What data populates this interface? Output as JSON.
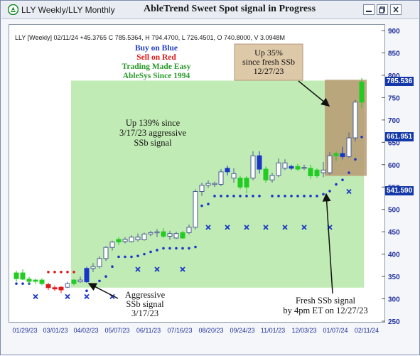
{
  "window": {
    "title": "LLY Weekly/LLY Monthly",
    "chart_heading": "AbleTrend Sweet Spot signal in Progress",
    "controls": [
      "minimize-icon",
      "restore-icon",
      "close-icon"
    ]
  },
  "quote_line": "LLY [Weekly] 02/11/24   +45.3765 C 785.5364, H 794.4700, L 726.4501, O 740.8000, V 3.0948M",
  "legend": [
    {
      "text": "Buy on Blue",
      "color": "#1f3cc8"
    },
    {
      "text": "Sell on Red",
      "color": "#e01818"
    },
    {
      "text": "Trading Made Easy",
      "color": "#2a9a2a"
    },
    {
      "text": "AbleSys Since 1994",
      "color": "#2a9a2a"
    }
  ],
  "annotations": {
    "up35": [
      "Up 35%",
      "since fresh SSb",
      "12/27/23"
    ],
    "up139": [
      "Up 139% since",
      "3/17/23 aggressive",
      "SSb signal"
    ],
    "aggressive": [
      "Aggressive",
      "SSb signal",
      "3/17/23"
    ],
    "fresh": [
      "Fresh SSb signal",
      "by 4pm ET on 12/27/23"
    ]
  },
  "price_tags": {
    "close": {
      "text": "785.536",
      "bg": "#1438a8"
    },
    "mid": {
      "text": "661.951",
      "bg": "#1438a8"
    },
    "stop": {
      "text": "541.590",
      "bg": "#1438a8"
    }
  },
  "colors": {
    "up": "#22cc22",
    "down": "#1a36c8",
    "sell": "#e01818",
    "neutral_outline": "#4a5e90",
    "stop": "#1a36c8",
    "highlight_green": "#b6e8a8",
    "highlight_brown": "#b89a72"
  },
  "chart_data": {
    "type": "candlestick",
    "title": "AbleTrend Sweet Spot signal in Progress",
    "symbol": "LLY",
    "interval": "Weekly",
    "ylim": [
      250,
      900
    ],
    "y_ticks": [
      250,
      300,
      350,
      400,
      450,
      500,
      550,
      600,
      650,
      700,
      750,
      800,
      850,
      900
    ],
    "x_ticks": [
      "01/29/23",
      "03/01/23",
      "04/02/23",
      "05/07/23",
      "06/11/23",
      "07/16/23",
      "08/20/23",
      "09/24/23",
      "11/01/23",
      "12/03/23",
      "01/07/24",
      "02/11/24"
    ],
    "grid": false,
    "bars": [
      {
        "date": "01/27/23",
        "o": 345,
        "h": 363,
        "l": 338,
        "c": 358,
        "s": "up"
      },
      {
        "date": "02/03/23",
        "o": 358,
        "h": 366,
        "l": 342,
        "c": 344,
        "s": "up"
      },
      {
        "date": "02/10/23",
        "o": 344,
        "h": 349,
        "l": 332,
        "c": 339,
        "s": "up"
      },
      {
        "date": "02/17/23",
        "o": 339,
        "h": 345,
        "l": 333,
        "c": 342,
        "s": "up"
      },
      {
        "date": "02/24/23",
        "o": 342,
        "h": 346,
        "l": 330,
        "c": 334,
        "s": "up"
      },
      {
        "date": "03/03/23",
        "o": 332,
        "h": 336,
        "l": 320,
        "c": 325,
        "s": "sell"
      },
      {
        "date": "03/10/23",
        "o": 325,
        "h": 330,
        "l": 318,
        "c": 322,
        "s": "sell"
      },
      {
        "date": "03/17/23",
        "o": 320,
        "h": 328,
        "l": 313,
        "c": 326,
        "s": "sell"
      },
      {
        "date": "03/24/23",
        "o": 326,
        "h": 338,
        "l": 324,
        "c": 334,
        "s": "neutral"
      },
      {
        "date": "03/31/23",
        "o": 334,
        "h": 344,
        "l": 330,
        "c": 342,
        "s": "up"
      },
      {
        "date": "04/07/23",
        "o": 342,
        "h": 350,
        "l": 336,
        "c": 338,
        "s": "neutral"
      },
      {
        "date": "04/14/23",
        "o": 338,
        "h": 372,
        "l": 336,
        "c": 368,
        "s": "down"
      },
      {
        "date": "04/21/23",
        "o": 368,
        "h": 380,
        "l": 360,
        "c": 372,
        "s": "neutral"
      },
      {
        "date": "04/28/23",
        "o": 372,
        "h": 395,
        "l": 368,
        "c": 390,
        "s": "neutral"
      },
      {
        "date": "05/05/23",
        "o": 390,
        "h": 418,
        "l": 385,
        "c": 415,
        "s": "neutral"
      },
      {
        "date": "05/12/23",
        "o": 415,
        "h": 430,
        "l": 408,
        "c": 427,
        "s": "neutral"
      },
      {
        "date": "05/19/23",
        "o": 427,
        "h": 438,
        "l": 420,
        "c": 433,
        "s": "up"
      },
      {
        "date": "05/26/23",
        "o": 433,
        "h": 438,
        "l": 424,
        "c": 428,
        "s": "neutral"
      },
      {
        "date": "06/02/23",
        "o": 428,
        "h": 442,
        "l": 426,
        "c": 438,
        "s": "neutral"
      },
      {
        "date": "06/09/23",
        "o": 438,
        "h": 446,
        "l": 428,
        "c": 432,
        "s": "neutral"
      },
      {
        "date": "06/16/23",
        "o": 432,
        "h": 448,
        "l": 430,
        "c": 445,
        "s": "neutral"
      },
      {
        "date": "06/23/23",
        "o": 445,
        "h": 452,
        "l": 440,
        "c": 448,
        "s": "neutral"
      },
      {
        "date": "06/30/23",
        "o": 448,
        "h": 456,
        "l": 438,
        "c": 450,
        "s": "neutral"
      },
      {
        "date": "07/07/23",
        "o": 450,
        "h": 458,
        "l": 436,
        "c": 440,
        "s": "up"
      },
      {
        "date": "07/14/23",
        "o": 440,
        "h": 452,
        "l": 432,
        "c": 446,
        "s": "neutral"
      },
      {
        "date": "07/21/23",
        "o": 446,
        "h": 450,
        "l": 434,
        "c": 436,
        "s": "neutral"
      },
      {
        "date": "07/28/23",
        "o": 436,
        "h": 452,
        "l": 434,
        "c": 448,
        "s": "up"
      },
      {
        "date": "08/04/23",
        "o": 448,
        "h": 466,
        "l": 444,
        "c": 460,
        "s": "neutral"
      },
      {
        "date": "08/11/23",
        "o": 460,
        "h": 545,
        "l": 455,
        "c": 540,
        "s": "neutral"
      },
      {
        "date": "08/18/23",
        "o": 540,
        "h": 560,
        "l": 530,
        "c": 554,
        "s": "neutral"
      },
      {
        "date": "08/25/23",
        "o": 554,
        "h": 565,
        "l": 548,
        "c": 558,
        "s": "neutral"
      },
      {
        "date": "09/01/23",
        "o": 558,
        "h": 562,
        "l": 550,
        "c": 556,
        "s": "neutral"
      },
      {
        "date": "09/08/23",
        "o": 556,
        "h": 590,
        "l": 552,
        "c": 584,
        "s": "neutral"
      },
      {
        "date": "09/15/23",
        "o": 584,
        "h": 598,
        "l": 576,
        "c": 592,
        "s": "down"
      },
      {
        "date": "09/22/23",
        "o": 580,
        "h": 592,
        "l": 560,
        "c": 570,
        "s": "neutral"
      },
      {
        "date": "09/29/23",
        "o": 570,
        "h": 575,
        "l": 545,
        "c": 550,
        "s": "up"
      },
      {
        "date": "10/06/23",
        "o": 550,
        "h": 574,
        "l": 536,
        "c": 570,
        "s": "up"
      },
      {
        "date": "10/13/23",
        "o": 570,
        "h": 630,
        "l": 565,
        "c": 620,
        "s": "neutral"
      },
      {
        "date": "10/20/23",
        "o": 620,
        "h": 630,
        "l": 580,
        "c": 590,
        "s": "down"
      },
      {
        "date": "10/27/23",
        "o": 590,
        "h": 596,
        "l": 560,
        "c": 566,
        "s": "up"
      },
      {
        "date": "11/03/23",
        "o": 566,
        "h": 582,
        "l": 560,
        "c": 576,
        "s": "neutral"
      },
      {
        "date": "11/10/23",
        "o": 576,
        "h": 614,
        "l": 572,
        "c": 604,
        "s": "neutral"
      },
      {
        "date": "11/17/23",
        "o": 604,
        "h": 612,
        "l": 588,
        "c": 592,
        "s": "neutral"
      },
      {
        "date": "11/24/23",
        "o": 592,
        "h": 600,
        "l": 588,
        "c": 596,
        "s": "down"
      },
      {
        "date": "12/01/23",
        "o": 596,
        "h": 602,
        "l": 586,
        "c": 590,
        "s": "up"
      },
      {
        "date": "12/08/23",
        "o": 594,
        "h": 600,
        "l": 588,
        "c": 592,
        "s": "neutral"
      },
      {
        "date": "12/15/23",
        "o": 592,
        "h": 600,
        "l": 568,
        "c": 575,
        "s": "up"
      },
      {
        "date": "12/22/23",
        "o": 575,
        "h": 592,
        "l": 570,
        "c": 588,
        "s": "up"
      },
      {
        "date": "12/29/23",
        "o": 588,
        "h": 606,
        "l": 572,
        "c": 582,
        "s": "neutral"
      },
      {
        "date": "01/05/24",
        "o": 582,
        "h": 628,
        "l": 578,
        "c": 620,
        "s": "neutral"
      },
      {
        "date": "01/12/24",
        "o": 620,
        "h": 630,
        "l": 608,
        "c": 625,
        "s": "up"
      },
      {
        "date": "01/19/24",
        "o": 625,
        "h": 640,
        "l": 612,
        "c": 618,
        "s": "down"
      },
      {
        "date": "01/26/24",
        "o": 618,
        "h": 672,
        "l": 615,
        "c": 660,
        "s": "neutral"
      },
      {
        "date": "02/02/24",
        "o": 660,
        "h": 745,
        "l": 652,
        "c": 740,
        "s": "neutral"
      },
      {
        "date": "02/09/24",
        "o": 740,
        "h": 794,
        "l": 726,
        "c": 785,
        "s": "up"
      }
    ],
    "stops": [
      {
        "i": 0,
        "v": 334,
        "s": "buy"
      },
      {
        "i": 1,
        "v": 334,
        "s": "buy"
      },
      {
        "i": 2,
        "v": 334,
        "s": "buy"
      },
      {
        "i": 5,
        "v": 360,
        "s": "sell"
      },
      {
        "i": 6,
        "v": 360,
        "s": "sell"
      },
      {
        "i": 7,
        "v": 360,
        "s": "sell"
      },
      {
        "i": 8,
        "v": 360,
        "s": "sell"
      },
      {
        "i": 9,
        "v": 360,
        "s": "sell"
      },
      {
        "i": 11,
        "v": 318,
        "s": "buy"
      },
      {
        "i": 12,
        "v": 325,
        "s": "buy"
      },
      {
        "i": 13,
        "v": 340,
        "s": "buy"
      },
      {
        "i": 14,
        "v": 350,
        "s": "buy"
      },
      {
        "i": 15,
        "v": 372,
        "s": "buy"
      },
      {
        "i": 16,
        "v": 394,
        "s": "buy"
      },
      {
        "i": 17,
        "v": 394,
        "s": "buy"
      },
      {
        "i": 18,
        "v": 394,
        "s": "buy"
      },
      {
        "i": 19,
        "v": 396,
        "s": "buy"
      },
      {
        "i": 20,
        "v": 400,
        "s": "buy"
      },
      {
        "i": 21,
        "v": 405,
        "s": "buy"
      },
      {
        "i": 22,
        "v": 409,
        "s": "buy"
      },
      {
        "i": 23,
        "v": 413,
        "s": "buy"
      },
      {
        "i": 24,
        "v": 413,
        "s": "buy"
      },
      {
        "i": 25,
        "v": 413,
        "s": "buy"
      },
      {
        "i": 26,
        "v": 413,
        "s": "buy"
      },
      {
        "i": 27,
        "v": 413,
        "s": "buy"
      },
      {
        "i": 28,
        "v": 416,
        "s": "buy"
      },
      {
        "i": 29,
        "v": 508,
        "s": "buy"
      },
      {
        "i": 30,
        "v": 512,
        "s": "buy"
      },
      {
        "i": 31,
        "v": 530,
        "s": "buy"
      },
      {
        "i": 32,
        "v": 530,
        "s": "buy"
      },
      {
        "i": 33,
        "v": 530,
        "s": "buy"
      },
      {
        "i": 34,
        "v": 530,
        "s": "buy"
      },
      {
        "i": 35,
        "v": 530,
        "s": "buy"
      },
      {
        "i": 36,
        "v": 530,
        "s": "buy"
      },
      {
        "i": 37,
        "v": 530,
        "s": "buy"
      },
      {
        "i": 38,
        "v": 530,
        "s": "buy"
      },
      {
        "i": 40,
        "v": 530,
        "s": "buy"
      },
      {
        "i": 41,
        "v": 530,
        "s": "buy"
      },
      {
        "i": 42,
        "v": 530,
        "s": "buy"
      },
      {
        "i": 43,
        "v": 530,
        "s": "buy"
      },
      {
        "i": 44,
        "v": 530,
        "s": "buy"
      },
      {
        "i": 45,
        "v": 530,
        "s": "buy"
      },
      {
        "i": 46,
        "v": 530,
        "s": "buy"
      },
      {
        "i": 47,
        "v": 530,
        "s": "buy"
      },
      {
        "i": 48,
        "v": 534,
        "s": "buy"
      },
      {
        "i": 49,
        "v": 541,
        "s": "buy"
      },
      {
        "i": 50,
        "v": 556,
        "s": "buy"
      },
      {
        "i": 51,
        "v": 566,
        "s": "buy"
      },
      {
        "i": 52,
        "v": 582,
        "s": "buy"
      },
      {
        "i": 53,
        "v": 612,
        "s": "buy"
      },
      {
        "i": 54,
        "v": 662,
        "s": "buy"
      }
    ],
    "markers": [
      {
        "i": 3,
        "v": 305
      },
      {
        "i": 8,
        "v": 305
      },
      {
        "i": 11,
        "v": 305
      },
      {
        "i": 15,
        "v": 305
      },
      {
        "i": 19,
        "v": 366
      },
      {
        "i": 22,
        "v": 366
      },
      {
        "i": 26,
        "v": 366
      },
      {
        "i": 30,
        "v": 460
      },
      {
        "i": 33,
        "v": 460
      },
      {
        "i": 36,
        "v": 460
      },
      {
        "i": 39,
        "v": 460
      },
      {
        "i": 42,
        "v": 460
      },
      {
        "i": 45,
        "v": 460
      },
      {
        "i": 49,
        "v": 460
      },
      {
        "i": 52,
        "v": 540
      }
    ]
  }
}
